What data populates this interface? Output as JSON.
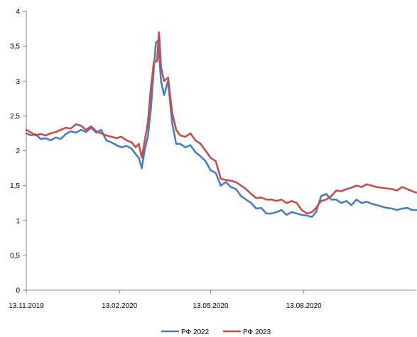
{
  "chart_data": {
    "type": "line",
    "title": "",
    "xlabel": "",
    "ylabel": "",
    "ylim": [
      0,
      4
    ],
    "yticks": [
      "0",
      "0,5",
      "1",
      "1,5",
      "2",
      "2,5",
      "3",
      "3,5",
      "4"
    ],
    "xticks": [
      "13.11.2019",
      "13.02.2020",
      "13.05.2020",
      "13.08.2020"
    ],
    "x_range": [
      "13.11.2019",
      "02.12.2020"
    ],
    "grid": false,
    "legend": "bottom",
    "series": [
      {
        "name": "РФ 2022",
        "color": "#4a7ebb",
        "points": [
          [
            "13.11.2019",
            2.25
          ],
          [
            "18.11.2019",
            2.22
          ],
          [
            "22.11.2019",
            2.24
          ],
          [
            "27.11.2019",
            2.17
          ],
          [
            "02.12.2019",
            2.18
          ],
          [
            "07.12.2019",
            2.15
          ],
          [
            "12.12.2019",
            2.19
          ],
          [
            "17.12.2019",
            2.17
          ],
          [
            "22.12.2019",
            2.24
          ],
          [
            "27.12.2019",
            2.28
          ],
          [
            "01.01.2020",
            2.26
          ],
          [
            "06.01.2020",
            2.3
          ],
          [
            "11.01.2020",
            2.27
          ],
          [
            "16.01.2020",
            2.33
          ],
          [
            "21.01.2020",
            2.26
          ],
          [
            "26.01.2020",
            2.3
          ],
          [
            "31.01.2020",
            2.15
          ],
          [
            "05.02.2020",
            2.12
          ],
          [
            "10.02.2020",
            2.08
          ],
          [
            "15.02.2020",
            2.05
          ],
          [
            "20.02.2020",
            2.07
          ],
          [
            "25.02.2020",
            2.03
          ],
          [
            "29.02.2020",
            1.95
          ],
          [
            "03.03.2020",
            1.9
          ],
          [
            "06.03.2020",
            1.75
          ],
          [
            "09.03.2020",
            2.02
          ],
          [
            "12.03.2020",
            2.2
          ],
          [
            "15.03.2020",
            2.6
          ],
          [
            "18.03.2020",
            3.2
          ],
          [
            "20.03.2020",
            3.55
          ],
          [
            "22.03.2020",
            3.58
          ],
          [
            "25.03.2020",
            3.0
          ],
          [
            "28.03.2020",
            2.8
          ],
          [
            "01.04.2020",
            3.0
          ],
          [
            "05.04.2020",
            2.4
          ],
          [
            "09.04.2020",
            2.1
          ],
          [
            "13.04.2020",
            2.1
          ],
          [
            "18.04.2020",
            2.05
          ],
          [
            "23.04.2020",
            2.08
          ],
          [
            "28.04.2020",
            1.98
          ],
          [
            "03.05.2020",
            1.92
          ],
          [
            "08.05.2020",
            1.85
          ],
          [
            "13.05.2020",
            1.72
          ],
          [
            "18.05.2020",
            1.68
          ],
          [
            "23.05.2020",
            1.5
          ],
          [
            "28.05.2020",
            1.55
          ],
          [
            "02.06.2020",
            1.48
          ],
          [
            "07.06.2020",
            1.45
          ],
          [
            "12.06.2020",
            1.35
          ],
          [
            "17.06.2020",
            1.3
          ],
          [
            "22.06.2020",
            1.25
          ],
          [
            "27.06.2020",
            1.17
          ],
          [
            "02.07.2020",
            1.18
          ],
          [
            "07.07.2020",
            1.1
          ],
          [
            "12.07.2020",
            1.1
          ],
          [
            "17.07.2020",
            1.12
          ],
          [
            "22.07.2020",
            1.15
          ],
          [
            "27.07.2020",
            1.08
          ],
          [
            "01.08.2020",
            1.12
          ],
          [
            "06.08.2020",
            1.1
          ],
          [
            "11.08.2020",
            1.08
          ],
          [
            "16.08.2020",
            1.07
          ],
          [
            "21.08.2020",
            1.05
          ],
          [
            "25.08.2020",
            1.12
          ],
          [
            "30.08.2020",
            1.35
          ],
          [
            "04.09.2020",
            1.38
          ],
          [
            "09.09.2020",
            1.3
          ],
          [
            "14.09.2020",
            1.3
          ],
          [
            "19.09.2020",
            1.25
          ],
          [
            "24.09.2020",
            1.28
          ],
          [
            "29.09.2020",
            1.22
          ],
          [
            "04.10.2020",
            1.3
          ],
          [
            "09.10.2020",
            1.25
          ],
          [
            "14.10.2020",
            1.27
          ],
          [
            "19.10.2020",
            1.24
          ],
          [
            "24.10.2020",
            1.22
          ],
          [
            "29.10.2020",
            1.2
          ],
          [
            "03.11.2020",
            1.18
          ],
          [
            "08.11.2020",
            1.17
          ],
          [
            "13.11.2020",
            1.15
          ],
          [
            "18.11.2020",
            1.17
          ],
          [
            "23.11.2020",
            1.18
          ],
          [
            "28.11.2020",
            1.15
          ],
          [
            "02.12.2020",
            1.15
          ]
        ]
      },
      {
        "name": "РФ 2023",
        "color": "#c0504d",
        "points": [
          [
            "13.11.2019",
            2.3
          ],
          [
            "18.11.2019",
            2.26
          ],
          [
            "22.11.2019",
            2.22
          ],
          [
            "27.11.2019",
            2.24
          ],
          [
            "02.12.2019",
            2.22
          ],
          [
            "07.12.2019",
            2.25
          ],
          [
            "12.12.2019",
            2.27
          ],
          [
            "17.12.2019",
            2.3
          ],
          [
            "22.12.2019",
            2.33
          ],
          [
            "27.12.2019",
            2.32
          ],
          [
            "01.01.2020",
            2.38
          ],
          [
            "06.01.2020",
            2.36
          ],
          [
            "11.01.2020",
            2.3
          ],
          [
            "16.01.2020",
            2.35
          ],
          [
            "21.01.2020",
            2.28
          ],
          [
            "26.01.2020",
            2.25
          ],
          [
            "31.01.2020",
            2.22
          ],
          [
            "05.02.2020",
            2.2
          ],
          [
            "10.02.2020",
            2.18
          ],
          [
            "15.02.2020",
            2.2
          ],
          [
            "20.02.2020",
            2.15
          ],
          [
            "25.02.2020",
            2.12
          ],
          [
            "29.02.2020",
            2.05
          ],
          [
            "03.03.2020",
            2.1
          ],
          [
            "06.03.2020",
            1.9
          ],
          [
            "09.03.2020",
            2.15
          ],
          [
            "12.03.2020",
            2.4
          ],
          [
            "15.03.2020",
            2.9
          ],
          [
            "18.03.2020",
            3.28
          ],
          [
            "21.03.2020",
            3.28
          ],
          [
            "23.03.2020",
            3.7
          ],
          [
            "25.03.2020",
            3.2
          ],
          [
            "28.03.2020",
            3.0
          ],
          [
            "01.04.2020",
            3.05
          ],
          [
            "05.04.2020",
            2.55
          ],
          [
            "09.04.2020",
            2.3
          ],
          [
            "13.04.2020",
            2.22
          ],
          [
            "18.04.2020",
            2.2
          ],
          [
            "23.04.2020",
            2.25
          ],
          [
            "28.04.2020",
            2.15
          ],
          [
            "03.05.2020",
            2.1
          ],
          [
            "08.05.2020",
            2.0
          ],
          [
            "13.05.2020",
            1.9
          ],
          [
            "18.05.2020",
            1.85
          ],
          [
            "23.05.2020",
            1.6
          ],
          [
            "28.05.2020",
            1.58
          ],
          [
            "02.06.2020",
            1.57
          ],
          [
            "07.06.2020",
            1.55
          ],
          [
            "12.06.2020",
            1.5
          ],
          [
            "17.06.2020",
            1.45
          ],
          [
            "22.06.2020",
            1.38
          ],
          [
            "27.06.2020",
            1.32
          ],
          [
            "02.07.2020",
            1.33
          ],
          [
            "07.07.2020",
            1.3
          ],
          [
            "12.07.2020",
            1.3
          ],
          [
            "17.07.2020",
            1.28
          ],
          [
            "22.07.2020",
            1.3
          ],
          [
            "27.07.2020",
            1.25
          ],
          [
            "01.08.2020",
            1.28
          ],
          [
            "06.08.2020",
            1.25
          ],
          [
            "11.08.2020",
            1.15
          ],
          [
            "16.08.2020",
            1.1
          ],
          [
            "21.08.2020",
            1.12
          ],
          [
            "25.08.2020",
            1.18
          ],
          [
            "30.08.2020",
            1.28
          ],
          [
            "04.09.2020",
            1.3
          ],
          [
            "09.09.2020",
            1.35
          ],
          [
            "14.09.2020",
            1.43
          ],
          [
            "19.09.2020",
            1.42
          ],
          [
            "24.09.2020",
            1.45
          ],
          [
            "29.09.2020",
            1.47
          ],
          [
            "04.10.2020",
            1.5
          ],
          [
            "09.10.2020",
            1.48
          ],
          [
            "14.10.2020",
            1.52
          ],
          [
            "19.10.2020",
            1.5
          ],
          [
            "24.10.2020",
            1.48
          ],
          [
            "29.10.2020",
            1.47
          ],
          [
            "03.11.2020",
            1.46
          ],
          [
            "08.11.2020",
            1.45
          ],
          [
            "13.11.2020",
            1.43
          ],
          [
            "18.11.2020",
            1.48
          ],
          [
            "23.11.2020",
            1.45
          ],
          [
            "28.11.2020",
            1.42
          ],
          [
            "02.12.2020",
            1.4
          ]
        ]
      }
    ]
  }
}
